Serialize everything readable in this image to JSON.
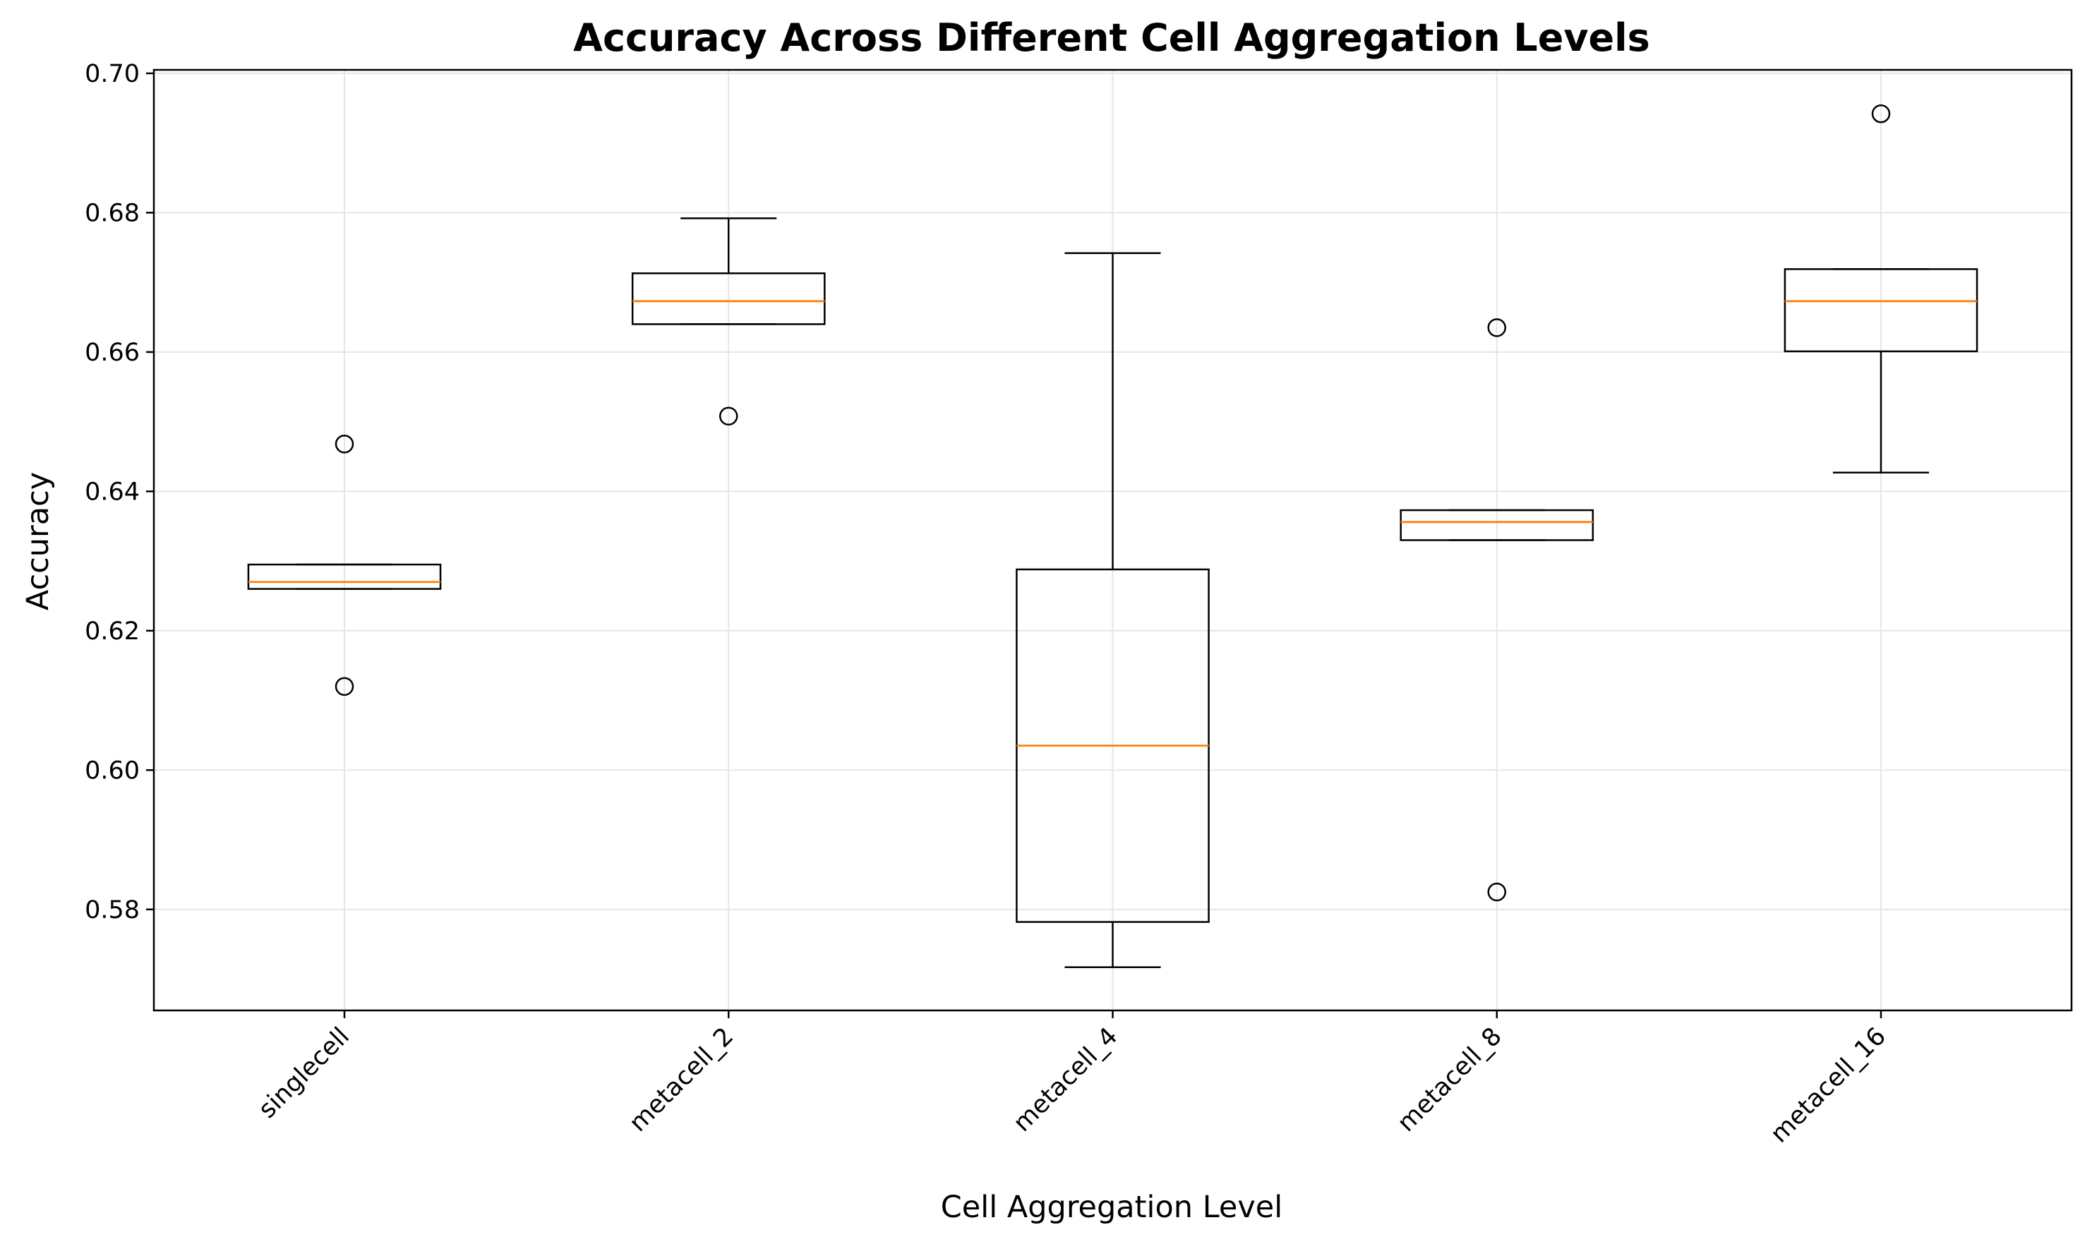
{
  "chart_data": {
    "type": "box",
    "title": "Accuracy Across Different Cell Aggregation Levels",
    "xlabel": "Cell Aggregation Level",
    "ylabel": "Accuracy",
    "categories": [
      "singlecell",
      "metacell_2",
      "metacell_4",
      "metacell_8",
      "metacell_16"
    ],
    "ylim": [
      0.5655,
      0.7005
    ],
    "yticks": [
      0.58,
      0.6,
      0.62,
      0.64,
      0.66,
      0.68,
      0.7
    ],
    "ytick_labels": [
      "0.58",
      "0.60",
      "0.62",
      "0.64",
      "0.66",
      "0.68",
      "0.70"
    ],
    "grid": true,
    "boxes": [
      {
        "category": "singlecell",
        "whisker_low": 0.626,
        "q1": 0.626,
        "median": 0.627,
        "q3": 0.6295,
        "whisker_high": 0.6295,
        "outliers": [
          0.612,
          0.6468
        ]
      },
      {
        "category": "metacell_2",
        "whisker_low": 0.664,
        "q1": 0.664,
        "median": 0.6673,
        "q3": 0.6713,
        "whisker_high": 0.6792,
        "outliers": [
          0.6508
        ]
      },
      {
        "category": "metacell_4",
        "whisker_low": 0.5717,
        "q1": 0.5782,
        "median": 0.6035,
        "q3": 0.6288,
        "whisker_high": 0.6742,
        "outliers": []
      },
      {
        "category": "metacell_8",
        "whisker_low": 0.633,
        "q1": 0.633,
        "median": 0.6356,
        "q3": 0.6373,
        "whisker_high": 0.6373,
        "outliers": [
          0.5825,
          0.6635
        ]
      },
      {
        "category": "metacell_16",
        "whisker_low": 0.6427,
        "q1": 0.6601,
        "median": 0.6673,
        "q3": 0.6719,
        "whisker_high": 0.6719,
        "outliers": [
          0.6942
        ]
      }
    ],
    "colors": {
      "box": "#000000",
      "median": "#ff7f0e",
      "grid": "#e6e6e6"
    }
  }
}
